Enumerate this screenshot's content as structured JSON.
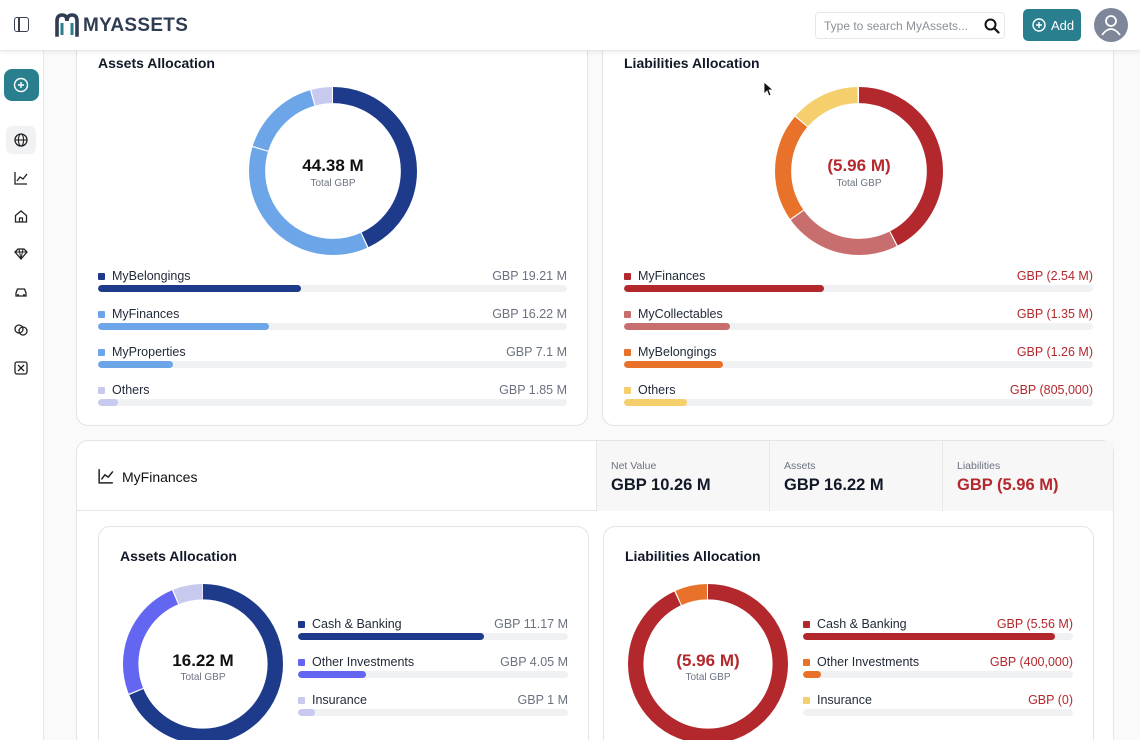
{
  "app": {
    "name": "MYASSETS"
  },
  "header": {
    "search_placeholder": "Type to search MyAssets...",
    "add_label": "Add"
  },
  "sidebar": {
    "items": [
      "plus",
      "globe",
      "chart",
      "home",
      "diamond",
      "car",
      "collectables",
      "close"
    ]
  },
  "top_assets": {
    "title": "Assets Allocation",
    "total_value": "44.38 M",
    "total_label": "Total GBP",
    "items": [
      {
        "name": "MyBelongings",
        "value": "GBP 19.21 M",
        "share": 0.433,
        "color": "#1e3a8a"
      },
      {
        "name": "MyFinances",
        "value": "GBP 16.22 M",
        "share": 0.365,
        "color": "#6ca6e8"
      },
      {
        "name": "MyProperties",
        "value": "GBP 7.1 M",
        "share": 0.16,
        "color": "#6ca6e8"
      },
      {
        "name": "Others",
        "value": "GBP 1.85 M",
        "share": 0.042,
        "color": "#c7c9ef"
      }
    ]
  },
  "top_liabilities": {
    "title": "Liabilities Allocation",
    "total_value": "(5.96 M)",
    "total_label": "Total GBP",
    "items": [
      {
        "name": "MyFinances",
        "value": "GBP (2.54 M)",
        "share": 0.426,
        "color": "#b3282d"
      },
      {
        "name": "MyCollectables",
        "value": "GBP (1.35 M)",
        "share": 0.227,
        "color": "#c96e6e"
      },
      {
        "name": "MyBelongings",
        "value": "GBP (1.26 M)",
        "share": 0.211,
        "color": "#e8722a"
      },
      {
        "name": "Others",
        "value": "GBP (805,000)",
        "share": 0.135,
        "color": "#f5cf6b"
      }
    ]
  },
  "section": {
    "title": "MyFinances",
    "stats": [
      {
        "label": "Net Value",
        "value": "GBP 10.26 M"
      },
      {
        "label": "Assets",
        "value": "GBP 16.22 M"
      },
      {
        "label": "Liabilities",
        "value": "GBP (5.96 M)"
      }
    ]
  },
  "bottom_assets": {
    "title": "Assets Allocation",
    "total_value": "16.22 M",
    "total_label": "Total GBP",
    "items": [
      {
        "name": "Cash & Banking",
        "value": "GBP 11.17 M",
        "share": 0.689,
        "color": "#1e3a8a"
      },
      {
        "name": "Other Investments",
        "value": "GBP 4.05 M",
        "share": 0.25,
        "color": "#6366f1"
      },
      {
        "name": "Insurance",
        "value": "GBP 1 M",
        "share": 0.062,
        "color": "#c7c9ef"
      }
    ]
  },
  "bottom_liabilities": {
    "title": "Liabilities Allocation",
    "total_value": "(5.96 M)",
    "total_label": "Total GBP",
    "items": [
      {
        "name": "Cash & Banking",
        "value": "GBP (5.56 M)",
        "share": 0.933,
        "color": "#b3282d"
      },
      {
        "name": "Other Investments",
        "value": "GBP (400,000)",
        "share": 0.067,
        "color": "#e8722a"
      },
      {
        "name": "Insurance",
        "value": "GBP (0)",
        "share": 0,
        "color": "#f5cf6b"
      }
    ]
  }
}
